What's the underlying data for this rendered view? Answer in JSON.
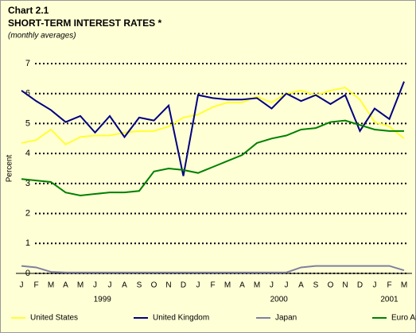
{
  "chart_data": {
    "type": "line",
    "label": "Chart 2.1",
    "title": "SHORT-TERM INTEREST RATES *",
    "subtitle": "(monthly averages)",
    "y_label": "Percent",
    "categories": [
      "J",
      "F",
      "M",
      "A",
      "M",
      "J",
      "J",
      "A",
      "S",
      "O",
      "N",
      "D",
      "J",
      "F",
      "M",
      "A",
      "M",
      "J",
      "J",
      "A",
      "S",
      "O",
      "N",
      "D",
      "J",
      "F",
      "M"
    ],
    "year_labels": [
      "1999",
      "2000",
      "2001"
    ],
    "ylim": [
      0,
      7
    ],
    "yticks": [
      0,
      1,
      2,
      3,
      4,
      5,
      6,
      7
    ],
    "grid": true,
    "legend": "bottom",
    "series": [
      {
        "name": "United States",
        "color": "#ffff33",
        "values": [
          4.35,
          4.45,
          4.8,
          4.3,
          4.55,
          4.6,
          4.6,
          4.7,
          4.75,
          4.75,
          4.9,
          5.2,
          5.3,
          5.55,
          5.7,
          5.7,
          5.9,
          5.7,
          6.0,
          6.1,
          5.95,
          6.1,
          6.2,
          5.8,
          5.05,
          4.9,
          4.5
        ]
      },
      {
        "name": "United Kingdom",
        "color": "#000080",
        "values": [
          6.1,
          5.75,
          5.45,
          5.05,
          5.25,
          4.7,
          5.25,
          4.55,
          5.2,
          5.1,
          5.6,
          3.25,
          5.95,
          5.85,
          5.8,
          5.8,
          5.85,
          5.5,
          6.0,
          5.75,
          5.95,
          5.65,
          5.95,
          4.75,
          5.5,
          5.15,
          6.4
        ]
      },
      {
        "name": "Japan",
        "color": "#8080a0",
        "values": [
          0.25,
          0.2,
          0.05,
          0.03,
          0.03,
          0.03,
          0.03,
          0.03,
          0.03,
          0.03,
          0.03,
          0.03,
          0.03,
          0.03,
          0.03,
          0.03,
          0.03,
          0.03,
          0.03,
          0.2,
          0.25,
          0.25,
          0.25,
          0.25,
          0.25,
          0.25,
          0.1
        ]
      },
      {
        "name": "Euro Area",
        "color": "#008000",
        "values": [
          3.15,
          3.1,
          3.05,
          2.7,
          2.6,
          2.65,
          2.7,
          2.7,
          2.75,
          3.4,
          3.5,
          3.45,
          3.35,
          3.55,
          3.75,
          3.95,
          4.35,
          4.5,
          4.6,
          4.8,
          4.85,
          5.05,
          5.1,
          4.95,
          4.8,
          4.75,
          4.75
        ]
      }
    ]
  }
}
